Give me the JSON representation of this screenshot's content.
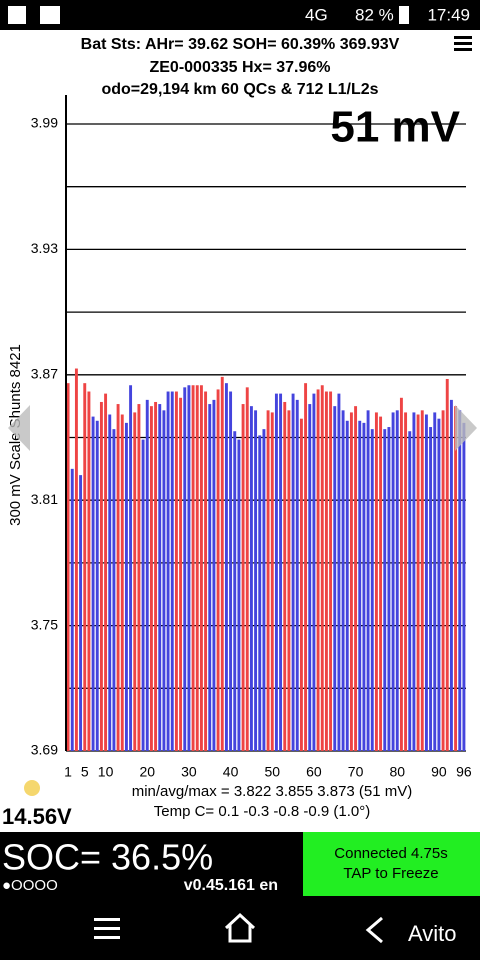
{
  "status_bar": {
    "signal": "4G",
    "battery": "82 %",
    "time": "17:49"
  },
  "header": {
    "line1": "Bat Sts: AHr= 39.62 SOH= 60.39% 369.93V",
    "line2": "ZE0-000335    Hx= 37.96%",
    "line3": "odo=29,194 km 60 QCs & 712 L1/L2s"
  },
  "chart_data": {
    "type": "bar",
    "annotation": "51 mV",
    "y_label": "300 mV Scale Shunts 8421",
    "x": [
      1,
      2,
      3,
      4,
      5,
      6,
      7,
      8,
      9,
      10,
      11,
      12,
      13,
      14,
      15,
      16,
      17,
      18,
      19,
      20,
      21,
      22,
      23,
      24,
      25,
      26,
      27,
      28,
      29,
      30,
      31,
      32,
      33,
      34,
      35,
      36,
      37,
      38,
      39,
      40,
      41,
      42,
      43,
      44,
      45,
      46,
      47,
      48,
      49,
      50,
      51,
      52,
      53,
      54,
      55,
      56,
      57,
      58,
      59,
      60,
      61,
      62,
      63,
      64,
      65,
      66,
      67,
      68,
      69,
      70,
      71,
      72,
      73,
      74,
      75,
      76,
      77,
      78,
      79,
      80,
      81,
      82,
      83,
      84,
      85,
      86,
      87,
      88,
      89,
      90,
      91,
      92,
      93,
      94,
      95,
      96
    ],
    "values": [
      3.866,
      3.825,
      3.873,
      3.822,
      3.866,
      3.862,
      3.85,
      3.848,
      3.857,
      3.861,
      3.851,
      3.844,
      3.856,
      3.851,
      3.847,
      3.865,
      3.852,
      3.856,
      3.839,
      3.858,
      3.855,
      3.857,
      3.856,
      3.853,
      3.862,
      3.862,
      3.862,
      3.859,
      3.864,
      3.865,
      3.865,
      3.865,
      3.865,
      3.862,
      3.856,
      3.858,
      3.863,
      3.869,
      3.866,
      3.862,
      3.843,
      3.839,
      3.856,
      3.864,
      3.855,
      3.853,
      3.841,
      3.844,
      3.853,
      3.852,
      3.861,
      3.861,
      3.857,
      3.853,
      3.861,
      3.858,
      3.849,
      3.866,
      3.856,
      3.861,
      3.863,
      3.865,
      3.862,
      3.862,
      3.855,
      3.861,
      3.853,
      3.848,
      3.852,
      3.855,
      3.848,
      3.847,
      3.853,
      3.844,
      3.852,
      3.85,
      3.844,
      3.845,
      3.852,
      3.853,
      3.859,
      3.852,
      3.843,
      3.852,
      3.851,
      3.853,
      3.851,
      3.845,
      3.852,
      3.849,
      3.853,
      3.868,
      3.858,
      3.855,
      3.853,
      3.847
    ],
    "colors": [
      "#ee4444",
      "#4444dd",
      "#ee4444",
      "#4444dd",
      "#ee4444",
      "#ee4444",
      "#4444dd",
      "#4444dd",
      "#ee4444",
      "#ee4444",
      "#4444dd",
      "#4444dd",
      "#ee4444",
      "#ee4444",
      "#4444dd",
      "#4444dd",
      "#ee4444",
      "#ee4444",
      "#4444dd",
      "#4444dd",
      "#ee4444",
      "#ee4444",
      "#4444dd",
      "#4444dd",
      "#4444dd",
      "#4444dd",
      "#ee4444",
      "#ee4444",
      "#4444dd",
      "#4444dd",
      "#ee4444",
      "#ee4444",
      "#ee4444",
      "#ee4444",
      "#4444dd",
      "#4444dd",
      "#ee4444",
      "#ee4444",
      "#4444dd",
      "#4444dd",
      "#4444dd",
      "#4444dd",
      "#ee4444",
      "#ee4444",
      "#4444dd",
      "#4444dd",
      "#4444dd",
      "#4444dd",
      "#ee4444",
      "#ee4444",
      "#4444dd",
      "#4444dd",
      "#ee4444",
      "#ee4444",
      "#4444dd",
      "#4444dd",
      "#ee4444",
      "#ee4444",
      "#4444dd",
      "#4444dd",
      "#ee4444",
      "#ee4444",
      "#ee4444",
      "#ee4444",
      "#4444dd",
      "#4444dd",
      "#4444dd",
      "#4444dd",
      "#ee4444",
      "#ee4444",
      "#4444dd",
      "#4444dd",
      "#4444dd",
      "#4444dd",
      "#ee4444",
      "#ee4444",
      "#4444dd",
      "#4444dd",
      "#4444dd",
      "#4444dd",
      "#ee4444",
      "#ee4444",
      "#4444dd",
      "#4444dd",
      "#ee4444",
      "#ee4444",
      "#4444dd",
      "#4444dd",
      "#4444dd",
      "#4444dd",
      "#ee4444",
      "#ee4444",
      "#4444dd",
      "#ee4444",
      "#4444dd",
      "#4444dd"
    ],
    "xlim": [
      0.5,
      96.5
    ],
    "xticks": [
      1,
      5,
      10,
      20,
      30,
      40,
      50,
      60,
      70,
      80,
      90,
      96
    ],
    "ylim": [
      3.69,
      3.99
    ],
    "yticks": [
      3.69,
      3.75,
      3.81,
      3.87,
      3.93,
      3.99
    ],
    "ygrid": [
      3.72,
      3.78,
      3.84,
      3.9,
      3.96
    ],
    "stats": "min/avg/max = 3.822 3.855 3.873  (51 mV)",
    "temps": "Temp C= 0.1  -0.3  -0.8  -0.9  (1.0°)"
  },
  "footer": {
    "voltage": "14.56V",
    "soc": "SOC= 36.5%",
    "dots": "●OOOO",
    "version": "v0.45.161 en",
    "status1": "Connected 4.75s",
    "status2": "TAP to Freeze"
  },
  "watermark": "Avito"
}
